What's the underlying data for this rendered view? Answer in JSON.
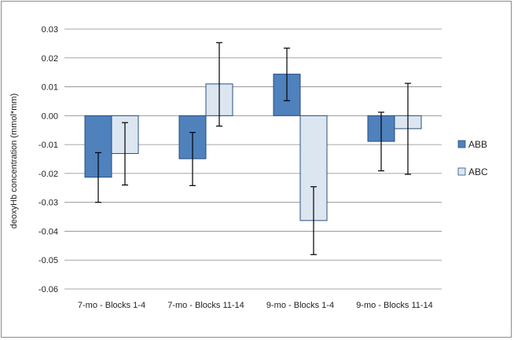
{
  "chart_data": {
    "type": "bar",
    "title": "",
    "xlabel": "",
    "ylabel": "deoxyHb concentration (mmol*mm)",
    "ylim": [
      -0.06,
      0.03
    ],
    "yticks": [
      "0.03",
      "0.02",
      "0.01",
      "0.00",
      "-0.01",
      "-0.02",
      "-0.03",
      "-0.04",
      "-0.05",
      "-0.06"
    ],
    "ytick_values": [
      0.03,
      0.02,
      0.01,
      0.0,
      -0.01,
      -0.02,
      -0.03,
      -0.04,
      -0.05,
      -0.06
    ],
    "grid": true,
    "legend_position": "right",
    "categories": [
      "7-mo - Blocks 1-4",
      "7-mo - Blocks 11-14",
      "9-mo - Blocks 1-4",
      "9-mo - Blocks 11-14"
    ],
    "series": [
      {
        "name": "ABB",
        "color": "#4f81bd",
        "values": [
          -0.0213,
          -0.0149,
          0.0144,
          -0.0089
        ],
        "error_high": [
          -0.0128,
          -0.0058,
          0.0234,
          0.0012
        ],
        "error_low": [
          -0.03,
          -0.0242,
          0.0052,
          -0.0191
        ]
      },
      {
        "name": "ABC",
        "color": "#dce6f1",
        "values": [
          -0.0131,
          0.011,
          -0.0363,
          -0.0045
        ],
        "error_high": [
          -0.0024,
          0.0253,
          -0.0246,
          0.0112
        ],
        "error_low": [
          -0.024,
          -0.0036,
          -0.0481,
          -0.0203
        ]
      }
    ]
  }
}
